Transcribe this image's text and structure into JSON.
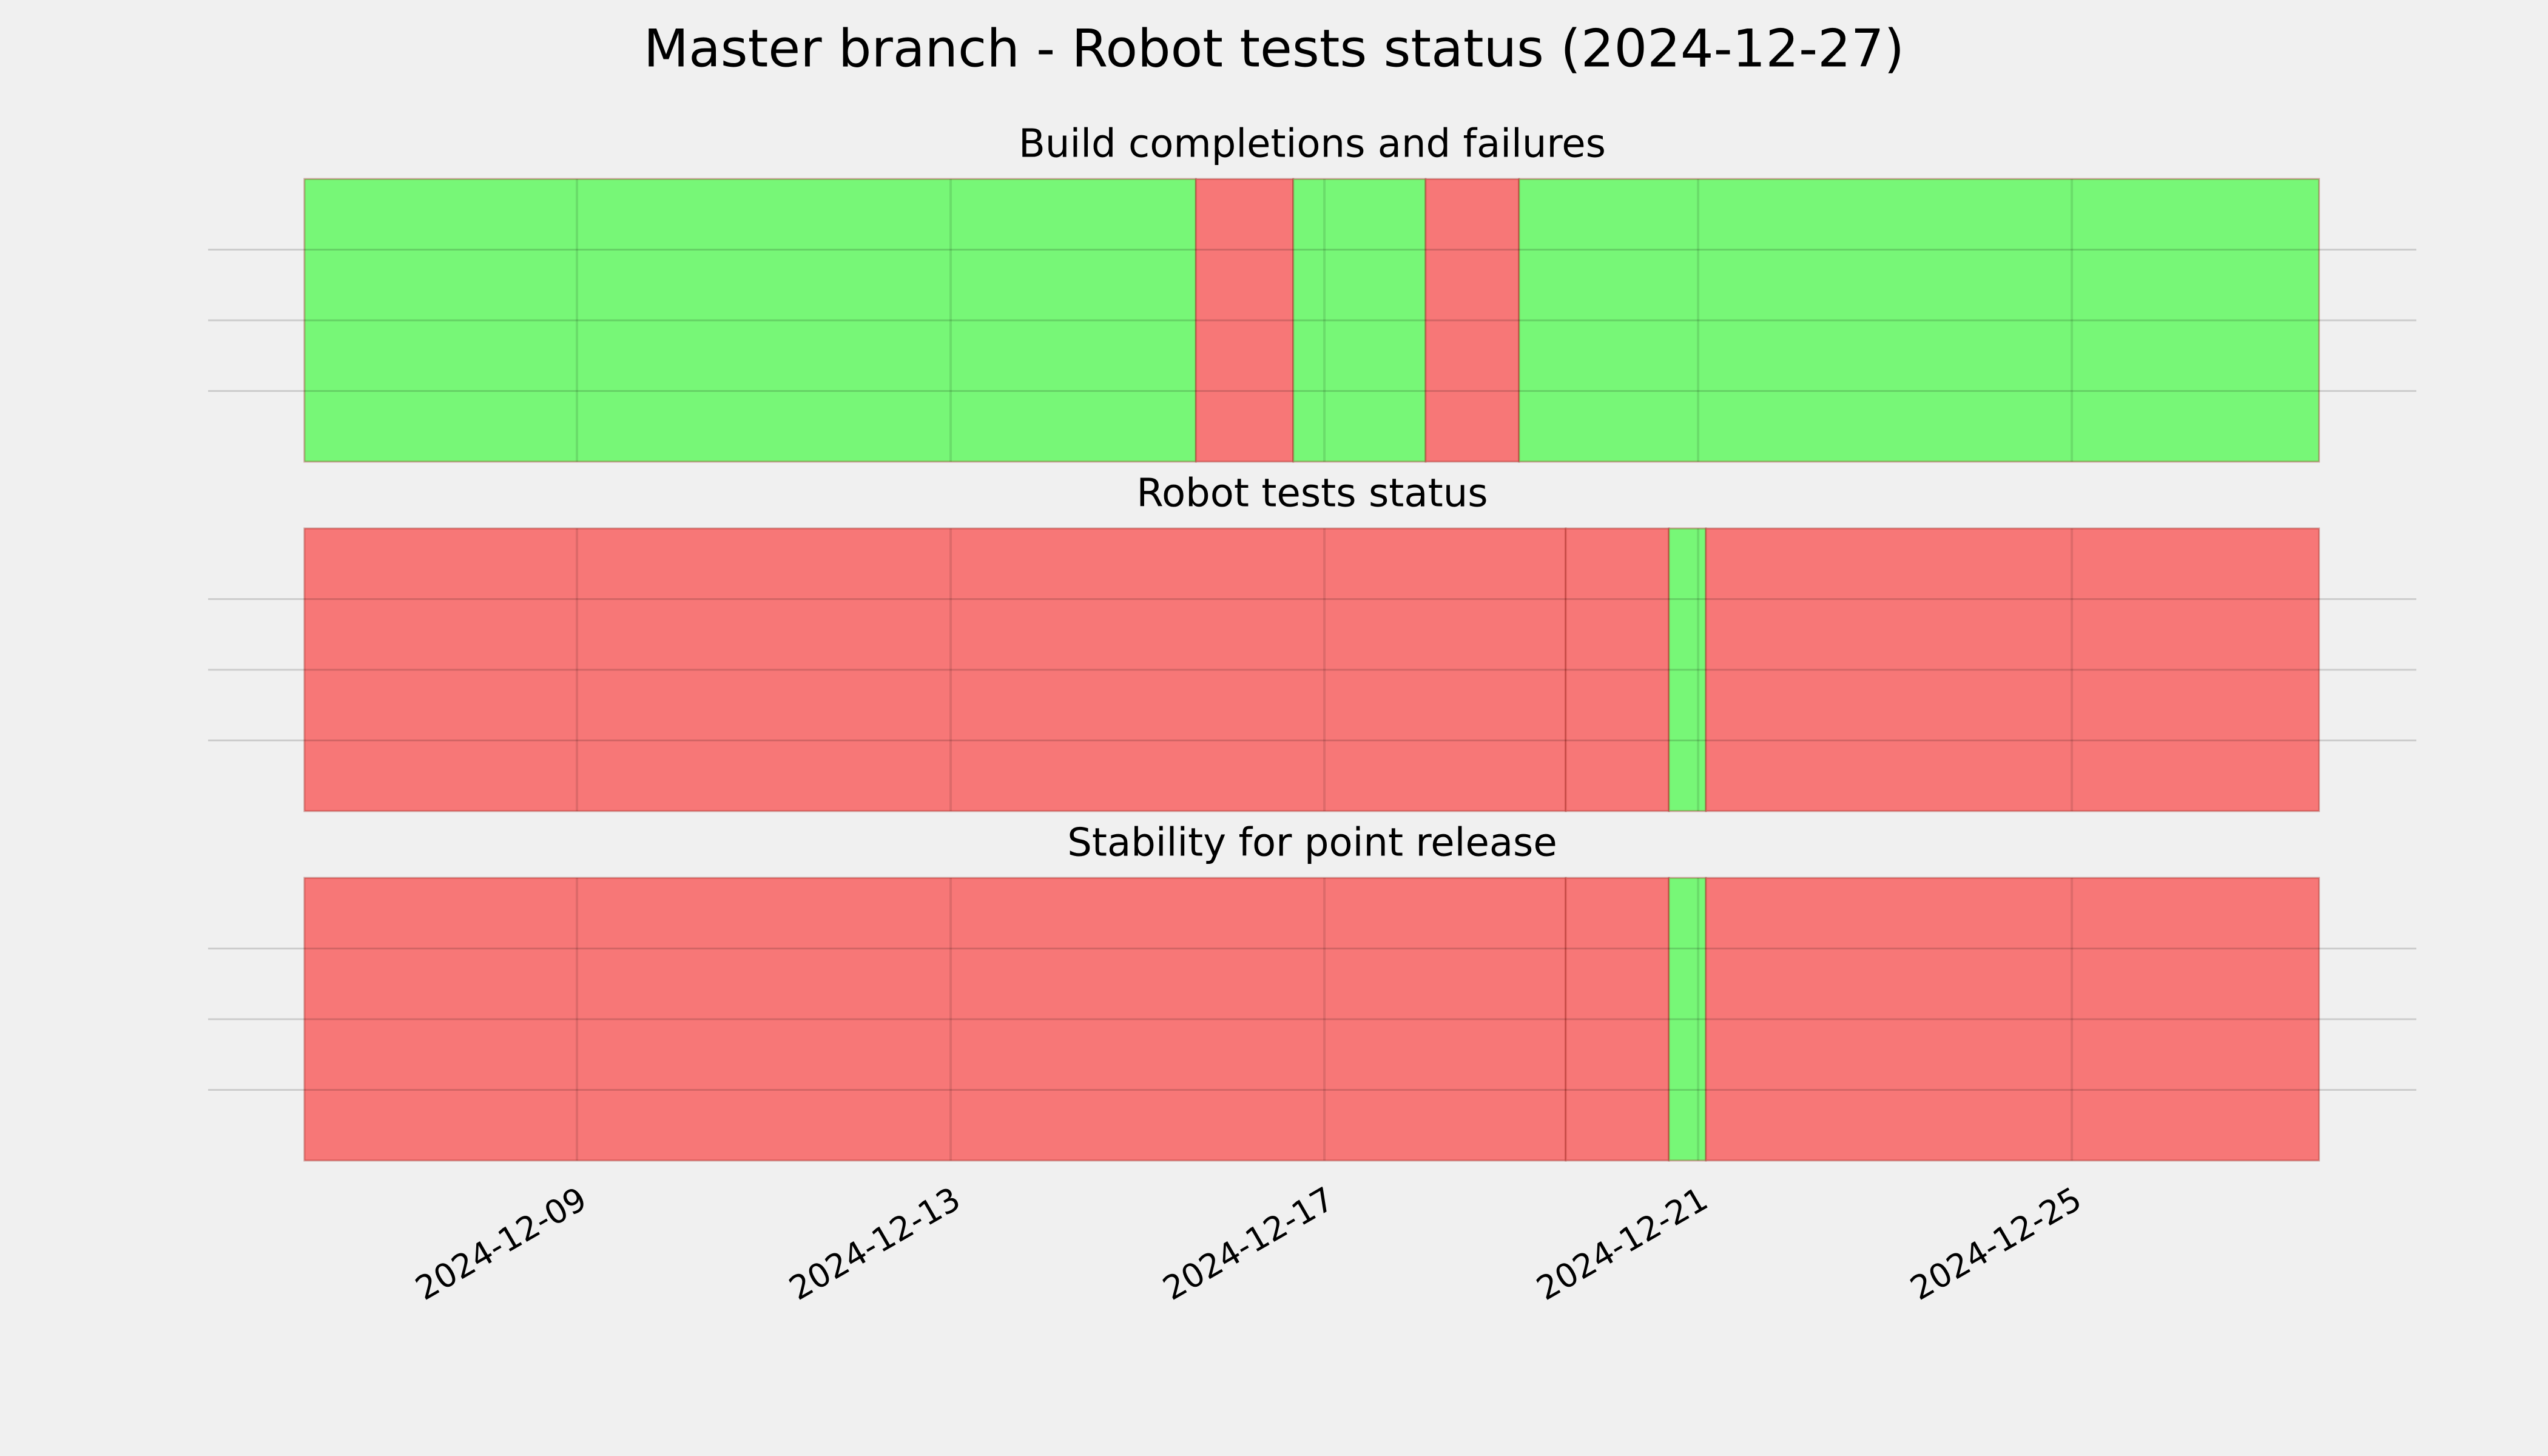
{
  "title": "Master branch - Robot tests status (2024-12-27)",
  "chart_data": [
    {
      "type": "timeline",
      "title": "Build completions and failures",
      "xlim": [
        "2024-12-05T01:15",
        "2024-12-28T16:30"
      ],
      "xticks": [
        "2024-12-09",
        "2024-12-13",
        "2024-12-17",
        "2024-12-21",
        "2024-12-25"
      ],
      "ylim": [
        0,
        1
      ],
      "yticks": [
        0.25,
        0.5,
        0.75
      ],
      "grid": true,
      "segments": [
        {
          "start": "2024-12-06T02:00",
          "end": "2024-12-15T15:00",
          "color": "#77f777"
        },
        {
          "start": "2024-12-15T15:00",
          "end": "2024-12-16T16:00",
          "color": "#f77777"
        },
        {
          "start": "2024-12-16T16:00",
          "end": "2024-12-18T02:00",
          "color": "#77f777"
        },
        {
          "start": "2024-12-18T02:00",
          "end": "2024-12-19T02:00",
          "color": "#f77777"
        },
        {
          "start": "2024-12-19T02:00",
          "end": "2024-12-27T15:30",
          "color": "#77f777"
        }
      ]
    },
    {
      "type": "timeline",
      "title": "Robot tests status",
      "xlim": [
        "2024-12-05T01:15",
        "2024-12-28T16:30"
      ],
      "xticks": [
        "2024-12-09",
        "2024-12-13",
        "2024-12-17",
        "2024-12-21",
        "2024-12-25"
      ],
      "ylim": [
        0,
        1
      ],
      "yticks": [
        0.25,
        0.5,
        0.75
      ],
      "grid": true,
      "segments": [
        {
          "start": "2024-12-06T02:00",
          "end": "2024-12-19T14:00",
          "color": "#f77777"
        },
        {
          "start": "2024-12-19T14:00",
          "end": "2024-12-20T16:30",
          "color": "#f77777"
        },
        {
          "start": "2024-12-20T16:30",
          "end": "2024-12-21T02:00",
          "color": "#77f777"
        },
        {
          "start": "2024-12-21T02:00",
          "end": "2024-12-27T15:30",
          "color": "#f77777"
        }
      ]
    },
    {
      "type": "timeline",
      "title": "Stability for point release",
      "xlim": [
        "2024-12-05T01:15",
        "2024-12-28T16:30"
      ],
      "xticks": [
        "2024-12-09",
        "2024-12-13",
        "2024-12-17",
        "2024-12-21",
        "2024-12-25"
      ],
      "ylim": [
        0,
        1
      ],
      "yticks": [
        0.25,
        0.5,
        0.75
      ],
      "grid": true,
      "segments": [
        {
          "start": "2024-12-06T02:00",
          "end": "2024-12-19T14:00",
          "color": "#f77777"
        },
        {
          "start": "2024-12-19T14:00",
          "end": "2024-12-20T16:30",
          "color": "#f77777"
        },
        {
          "start": "2024-12-20T16:30",
          "end": "2024-12-21T02:00",
          "color": "#77f777"
        },
        {
          "start": "2024-12-21T02:00",
          "end": "2024-12-27T15:30",
          "color": "#f77777"
        }
      ]
    }
  ]
}
